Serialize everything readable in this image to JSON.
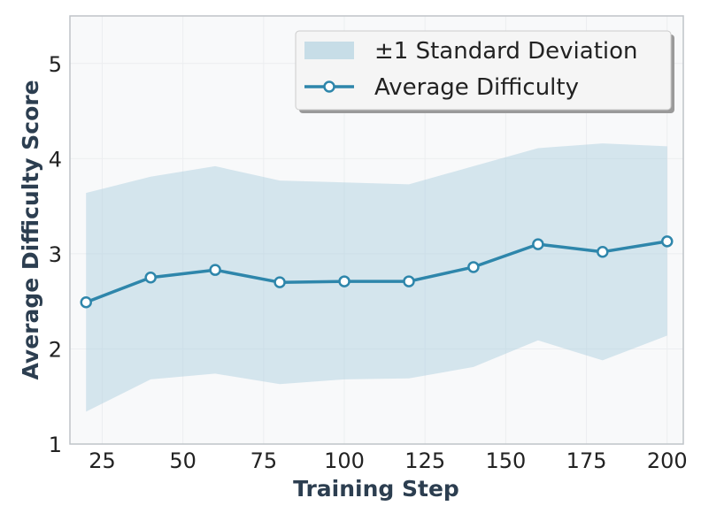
{
  "chart_data": {
    "type": "line",
    "title": "",
    "xlabel": "Training Step",
    "ylabel": "Average Difficulty Score",
    "xlim": [
      15,
      205
    ],
    "ylim": [
      1,
      5.5
    ],
    "xticks": [
      25,
      50,
      75,
      100,
      125,
      150,
      175,
      200
    ],
    "yticks": [
      1,
      2,
      3,
      4,
      5
    ],
    "grid": true,
    "legend_position": "top-right",
    "x": [
      20,
      40,
      60,
      80,
      100,
      120,
      140,
      160,
      180,
      200
    ],
    "series": [
      {
        "name": "Average Difficulty",
        "values": [
          2.49,
          2.75,
          2.83,
          2.7,
          2.71,
          2.71,
          2.86,
          3.1,
          3.02,
          3.13
        ]
      }
    ],
    "band": {
      "name": "±1 Standard Deviation",
      "upper": [
        3.64,
        3.81,
        3.92,
        3.77,
        3.75,
        3.73,
        3.92,
        4.11,
        4.16,
        4.13
      ],
      "lower": [
        1.34,
        1.68,
        1.74,
        1.63,
        1.68,
        1.69,
        1.81,
        2.09,
        1.88,
        2.14
      ]
    },
    "legend": [
      "±1 Standard Deviation",
      "Average Difficulty"
    ]
  },
  "colors": {
    "line": "#2e86ab",
    "band": "#a8cddd",
    "plot_bg": "#f8f9fa",
    "axis_title": "#2c3e50",
    "frame": "#bfc4c8"
  }
}
